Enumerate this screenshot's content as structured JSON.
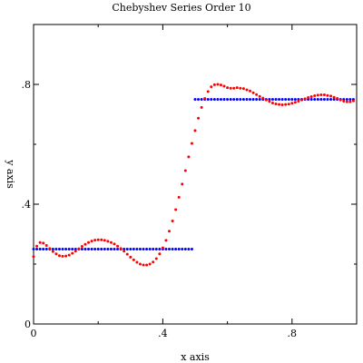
{
  "chart_data": {
    "type": "scatter",
    "title": "Chebyshev Series Order 10",
    "xlabel": "x axis",
    "ylabel": "y axis",
    "xlim": [
      0,
      1
    ],
    "ylim": [
      0,
      1
    ],
    "xticks": [
      {
        "value": 0,
        "label": "0"
      },
      {
        "value": 0.4,
        "label": ".4"
      },
      {
        "value": 0.8,
        "label": ".8"
      }
    ],
    "yticks": [
      {
        "value": 0,
        "label": "0"
      },
      {
        "value": 0.4,
        "label": ".4"
      },
      {
        "value": 0.8,
        "label": ".8"
      }
    ],
    "grid": false,
    "series": [
      {
        "color": "#0000ff",
        "segments": [
          {
            "x_start": 0.0,
            "x_end": 0.49,
            "x_step": 0.01,
            "y": 0.25
          },
          {
            "x_start": 0.5,
            "x_end": 0.99,
            "x_step": 0.01,
            "y": 0.75
          }
        ]
      },
      {
        "color": "#ff0000",
        "x_start": 0.0,
        "x_end": 0.99,
        "x_step": 0.01,
        "y": [
          0.225,
          0.26,
          0.272,
          0.27,
          0.262,
          0.252,
          0.242,
          0.234,
          0.228,
          0.226,
          0.227,
          0.23,
          0.236,
          0.243,
          0.251,
          0.259,
          0.266,
          0.272,
          0.277,
          0.28,
          0.281,
          0.281,
          0.279,
          0.276,
          0.272,
          0.267,
          0.26,
          0.252,
          0.243,
          0.233,
          0.223,
          0.214,
          0.206,
          0.2,
          0.197,
          0.197,
          0.2,
          0.207,
          0.218,
          0.234,
          0.254,
          0.279,
          0.31,
          0.344,
          0.382,
          0.423,
          0.467,
          0.512,
          0.558,
          0.603,
          0.646,
          0.687,
          0.723,
          0.753,
          0.776,
          0.792,
          0.799,
          0.8,
          0.798,
          0.794,
          0.789,
          0.787,
          0.787,
          0.789,
          0.787,
          0.786,
          0.782,
          0.778,
          0.772,
          0.766,
          0.76,
          0.754,
          0.748,
          0.743,
          0.738,
          0.735,
          0.733,
          0.732,
          0.733,
          0.734,
          0.737,
          0.74,
          0.744,
          0.748,
          0.752,
          0.756,
          0.759,
          0.762,
          0.764,
          0.765,
          0.765,
          0.763,
          0.761,
          0.757,
          0.753,
          0.748,
          0.744,
          0.742,
          0.742,
          0.745
        ]
      }
    ]
  }
}
